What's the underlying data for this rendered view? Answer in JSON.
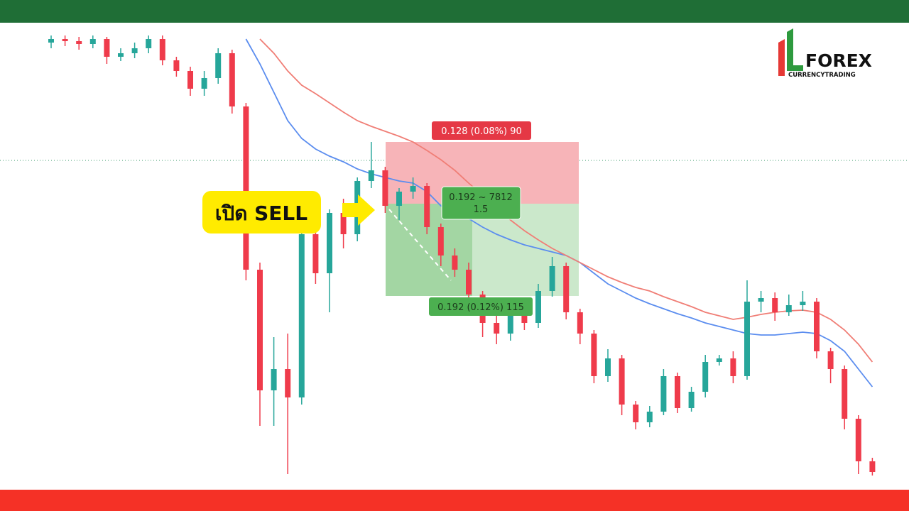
{
  "chart_data": {
    "type": "candlestick",
    "ylim": [
      0,
      650
    ],
    "up_color": "#26a69a",
    "down_color": "#ef3b4b",
    "ohlc": [
      [
        630,
        640,
        622,
        635
      ],
      [
        635,
        640,
        625,
        632
      ],
      [
        632,
        638,
        620,
        628
      ],
      [
        628,
        640,
        622,
        635
      ],
      [
        635,
        638,
        600,
        610
      ],
      [
        610,
        622,
        604,
        615
      ],
      [
        615,
        630,
        608,
        622
      ],
      [
        622,
        640,
        615,
        635
      ],
      [
        635,
        640,
        598,
        605
      ],
      [
        605,
        610,
        582,
        590
      ],
      [
        590,
        596,
        555,
        565
      ],
      [
        565,
        590,
        555,
        580
      ],
      [
        580,
        622,
        572,
        615
      ],
      [
        615,
        620,
        530,
        540
      ],
      [
        540,
        545,
        295,
        310
      ],
      [
        310,
        320,
        90,
        140
      ],
      [
        140,
        215,
        90,
        170
      ],
      [
        170,
        220,
        22,
        130
      ],
      [
        130,
        380,
        120,
        360
      ],
      [
        360,
        370,
        290,
        305
      ],
      [
        305,
        395,
        250,
        390
      ],
      [
        390,
        410,
        340,
        360
      ],
      [
        360,
        440,
        350,
        435
      ],
      [
        435,
        490,
        425,
        450
      ],
      [
        450,
        455,
        390,
        400
      ],
      [
        400,
        425,
        380,
        420
      ],
      [
        420,
        440,
        410,
        428
      ],
      [
        428,
        432,
        360,
        370
      ],
      [
        370,
        375,
        315,
        330
      ],
      [
        330,
        340,
        300,
        310
      ],
      [
        310,
        320,
        262,
        275
      ],
      [
        275,
        280,
        215,
        235
      ],
      [
        235,
        250,
        205,
        220
      ],
      [
        220,
        262,
        210,
        250
      ],
      [
        250,
        262,
        225,
        235
      ],
      [
        235,
        290,
        228,
        280
      ],
      [
        280,
        328,
        272,
        315
      ],
      [
        315,
        320,
        240,
        250
      ],
      [
        250,
        255,
        205,
        220
      ],
      [
        220,
        225,
        150,
        160
      ],
      [
        160,
        198,
        152,
        185
      ],
      [
        185,
        190,
        105,
        120
      ],
      [
        120,
        125,
        85,
        95
      ],
      [
        95,
        118,
        88,
        110
      ],
      [
        110,
        170,
        105,
        160
      ],
      [
        160,
        165,
        108,
        115
      ],
      [
        115,
        145,
        110,
        138
      ],
      [
        138,
        190,
        130,
        180
      ],
      [
        180,
        190,
        175,
        185
      ],
      [
        185,
        195,
        150,
        160
      ],
      [
        160,
        295,
        155,
        265
      ],
      [
        265,
        280,
        250,
        270
      ],
      [
        270,
        278,
        238,
        250
      ],
      [
        250,
        275,
        245,
        260
      ],
      [
        260,
        280,
        252,
        265
      ],
      [
        265,
        270,
        185,
        195
      ],
      [
        195,
        200,
        150,
        170
      ],
      [
        170,
        175,
        85,
        100
      ],
      [
        100,
        105,
        22,
        40
      ],
      [
        40,
        45,
        20,
        25
      ]
    ],
    "series": [
      {
        "color": "#5b8def",
        "values": [
          null,
          null,
          null,
          null,
          null,
          null,
          null,
          null,
          null,
          null,
          null,
          null,
          null,
          null,
          635,
          600,
          560,
          520,
          495,
          480,
          470,
          462,
          452,
          445,
          440,
          435,
          432,
          420,
          400,
          390,
          382,
          370,
          360,
          352,
          345,
          340,
          335,
          330,
          320,
          305,
          290,
          280,
          270,
          262,
          255,
          248,
          242,
          235,
          230,
          225,
          220,
          218,
          218,
          220,
          222,
          220,
          210,
          195,
          170,
          145
        ]
      },
      {
        "color": "#f07e76",
        "values": [
          null,
          null,
          null,
          null,
          null,
          null,
          null,
          null,
          null,
          null,
          null,
          null,
          null,
          null,
          null,
          635,
          615,
          590,
          570,
          558,
          545,
          532,
          520,
          512,
          505,
          498,
          490,
          478,
          465,
          450,
          432,
          415,
          398,
          380,
          365,
          352,
          340,
          330,
          320,
          310,
          300,
          292,
          285,
          280,
          272,
          265,
          258,
          250,
          245,
          240,
          243,
          247,
          250,
          252,
          253,
          250,
          240,
          225,
          205,
          180
        ]
      }
    ]
  },
  "position": {
    "stop_label": "0.128 (0.08%) 90",
    "center_label": "0.192 ~ 7812",
    "ratio": "1.5",
    "target_label": "0.192 (0.12%) 115"
  },
  "callout": "เปิด SELL",
  "logo": {
    "name": "FOREX",
    "tagline": "CURRENCYTRADING"
  }
}
